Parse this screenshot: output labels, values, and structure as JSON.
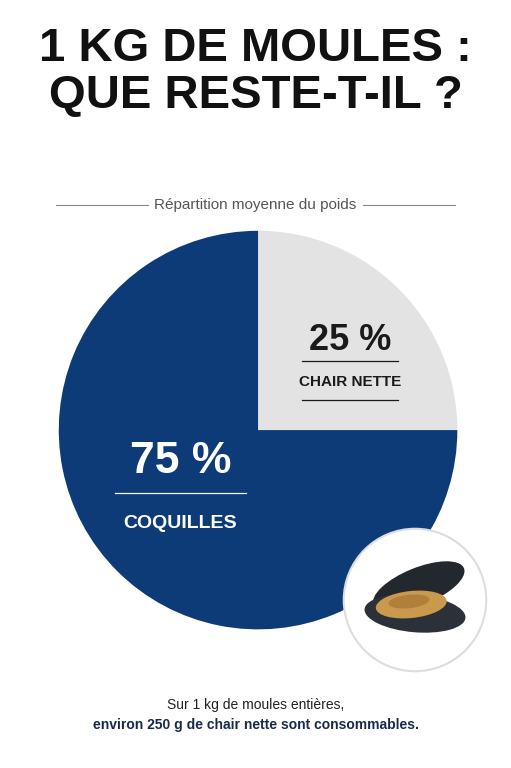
{
  "chart_data": {
    "type": "pie",
    "title": "1 KG DE MOULES :\nQUE RESTE-T-IL ?",
    "subtitle": "Répartition moyenne du poids",
    "categories": [
      "CHAIR NETTE",
      "COQUILLES"
    ],
    "values": [
      25,
      75
    ],
    "value_labels": [
      "25 %",
      "75 %"
    ],
    "colors": [
      "#e3e3e3",
      "#0d3b78"
    ],
    "data_labels": true,
    "annotation": [
      "Sur 1 kg de moules entières,",
      "environ 250 g de chair nette sont consommables."
    ]
  }
}
